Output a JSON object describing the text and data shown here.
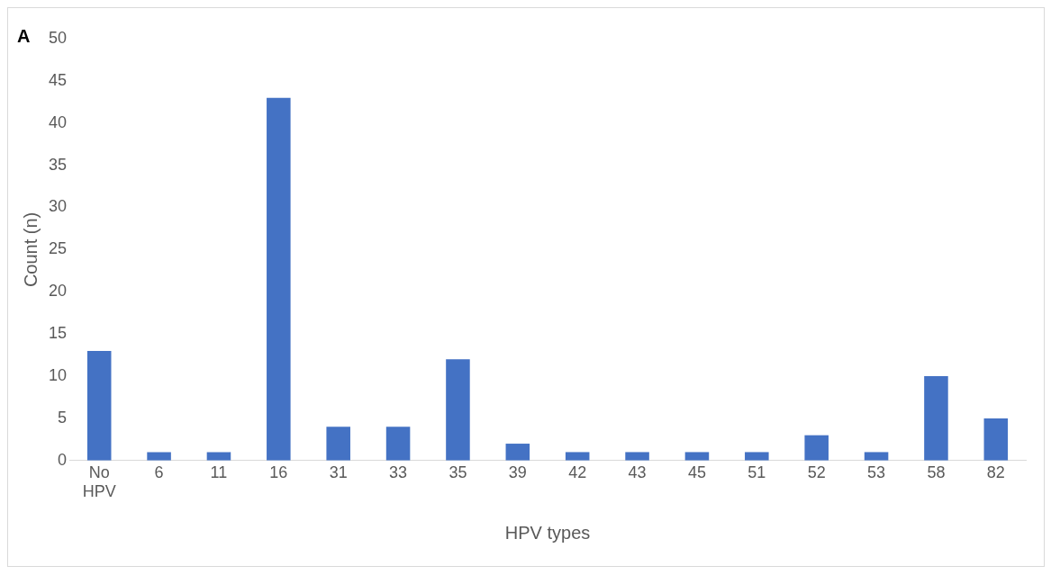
{
  "chart_data": {
    "type": "bar",
    "title": "A",
    "xlabel": "HPV types",
    "ylabel": "Count (n)",
    "categories": [
      "No HPV",
      "6",
      "11",
      "16",
      "31",
      "33",
      "35",
      "39",
      "42",
      "43",
      "45",
      "51",
      "52",
      "53",
      "58",
      "82"
    ],
    "values": [
      13,
      1,
      1,
      43,
      4,
      4,
      12,
      2,
      1,
      1,
      1,
      1,
      3,
      1,
      10,
      5
    ],
    "color": "#4472c4",
    "ylim": [
      0,
      50
    ],
    "yticks": [
      0,
      5,
      10,
      15,
      20,
      25,
      30,
      35,
      40,
      45,
      50
    ],
    "grid": false,
    "legend": false
  }
}
